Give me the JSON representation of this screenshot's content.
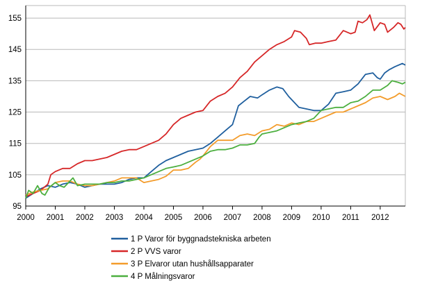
{
  "chart_data": {
    "type": "line",
    "title": "",
    "xlabel": "",
    "ylabel": "",
    "xlim": [
      2000,
      2012.85
    ],
    "ylim": [
      95,
      159
    ],
    "y_ticks": [
      95,
      105,
      115,
      125,
      135,
      145,
      155
    ],
    "x_ticks": [
      2000,
      2001,
      2002,
      2003,
      2004,
      2005,
      2006,
      2007,
      2008,
      2009,
      2010,
      2011,
      2012
    ],
    "x_tick_labels": [
      "2000",
      "2001",
      "2002",
      "2003",
      "2004",
      "2005",
      "2006",
      "2007",
      "2008",
      "2009",
      "2010",
      "2011",
      "2012"
    ],
    "grid": "horizontal",
    "legend_position": "bottom",
    "series": [
      {
        "name": "1 P Varor för byggnadstekniska arbeten",
        "color": "#1f5f9e",
        "points": [
          [
            2000.0,
            97.5
          ],
          [
            2000.25,
            99
          ],
          [
            2000.5,
            100.5
          ],
          [
            2000.75,
            101.5
          ],
          [
            2001.0,
            101
          ],
          [
            2001.25,
            102
          ],
          [
            2001.5,
            102.5
          ],
          [
            2001.75,
            102
          ],
          [
            2002.0,
            101
          ],
          [
            2002.25,
            101.5
          ],
          [
            2002.5,
            102
          ],
          [
            2002.75,
            102
          ],
          [
            2003.0,
            102
          ],
          [
            2003.25,
            102.5
          ],
          [
            2003.5,
            103.5
          ],
          [
            2003.75,
            104
          ],
          [
            2004.0,
            104
          ],
          [
            2004.25,
            106
          ],
          [
            2004.5,
            108
          ],
          [
            2004.75,
            109.5
          ],
          [
            2005.0,
            110.5
          ],
          [
            2005.25,
            111.5
          ],
          [
            2005.5,
            112.5
          ],
          [
            2005.75,
            113
          ],
          [
            2006.0,
            113.5
          ],
          [
            2006.25,
            115
          ],
          [
            2006.5,
            117
          ],
          [
            2006.75,
            119
          ],
          [
            2007.0,
            121
          ],
          [
            2007.1,
            124
          ],
          [
            2007.2,
            127
          ],
          [
            2007.4,
            128.5
          ],
          [
            2007.6,
            130
          ],
          [
            2007.85,
            129.5
          ],
          [
            2008.0,
            130.5
          ],
          [
            2008.25,
            132
          ],
          [
            2008.5,
            133
          ],
          [
            2008.7,
            132.5
          ],
          [
            2008.9,
            130
          ],
          [
            2009.0,
            129
          ],
          [
            2009.25,
            126.5
          ],
          [
            2009.5,
            126
          ],
          [
            2009.75,
            125.5
          ],
          [
            2010.0,
            125.5
          ],
          [
            2010.25,
            127.5
          ],
          [
            2010.5,
            131
          ],
          [
            2010.75,
            131.5
          ],
          [
            2011.0,
            132
          ],
          [
            2011.25,
            134
          ],
          [
            2011.5,
            137
          ],
          [
            2011.75,
            137.5
          ],
          [
            2011.9,
            136
          ],
          [
            2012.0,
            135.5
          ],
          [
            2012.15,
            137.5
          ],
          [
            2012.3,
            138.5
          ],
          [
            2012.5,
            139.5
          ],
          [
            2012.75,
            140.5
          ],
          [
            2012.85,
            140
          ]
        ]
      },
      {
        "name": "2 P VVS varor",
        "color": "#d62728",
        "points": [
          [
            2000.0,
            98
          ],
          [
            2000.25,
            99
          ],
          [
            2000.5,
            100
          ],
          [
            2000.75,
            102
          ],
          [
            2000.85,
            105
          ],
          [
            2001.0,
            106
          ],
          [
            2001.25,
            107
          ],
          [
            2001.5,
            107
          ],
          [
            2001.75,
            108.5
          ],
          [
            2002.0,
            109.5
          ],
          [
            2002.25,
            109.5
          ],
          [
            2002.5,
            110
          ],
          [
            2002.75,
            110.5
          ],
          [
            2003.0,
            111.5
          ],
          [
            2003.25,
            112.5
          ],
          [
            2003.5,
            113
          ],
          [
            2003.75,
            113
          ],
          [
            2004.0,
            114
          ],
          [
            2004.25,
            115
          ],
          [
            2004.5,
            116
          ],
          [
            2004.75,
            118
          ],
          [
            2005.0,
            121
          ],
          [
            2005.25,
            123
          ],
          [
            2005.5,
            124
          ],
          [
            2005.75,
            125
          ],
          [
            2006.0,
            125.5
          ],
          [
            2006.25,
            128.5
          ],
          [
            2006.5,
            130
          ],
          [
            2006.75,
            131
          ],
          [
            2007.0,
            133
          ],
          [
            2007.25,
            136
          ],
          [
            2007.5,
            138
          ],
          [
            2007.75,
            141
          ],
          [
            2008.0,
            143
          ],
          [
            2008.25,
            145
          ],
          [
            2008.5,
            146.5
          ],
          [
            2008.75,
            147.5
          ],
          [
            2009.0,
            149
          ],
          [
            2009.1,
            151
          ],
          [
            2009.3,
            150.5
          ],
          [
            2009.5,
            148.5
          ],
          [
            2009.6,
            146.5
          ],
          [
            2009.8,
            147
          ],
          [
            2010.0,
            147
          ],
          [
            2010.25,
            147.5
          ],
          [
            2010.5,
            148
          ],
          [
            2010.75,
            151
          ],
          [
            2011.0,
            150
          ],
          [
            2011.15,
            150.5
          ],
          [
            2011.25,
            154
          ],
          [
            2011.4,
            153.5
          ],
          [
            2011.55,
            154.5
          ],
          [
            2011.65,
            156
          ],
          [
            2011.8,
            151
          ],
          [
            2012.0,
            153.5
          ],
          [
            2012.15,
            153
          ],
          [
            2012.25,
            150.5
          ],
          [
            2012.45,
            152
          ],
          [
            2012.6,
            153.5
          ],
          [
            2012.7,
            153
          ],
          [
            2012.8,
            151.5
          ],
          [
            2012.85,
            152
          ]
        ]
      },
      {
        "name": "3 P Elvaror utan hushållsapparater",
        "color": "#f39c2b",
        "points": [
          [
            2000.0,
            98.5
          ],
          [
            2000.25,
            99.5
          ],
          [
            2000.5,
            100
          ],
          [
            2000.75,
            100.5
          ],
          [
            2001.0,
            102.5
          ],
          [
            2001.25,
            103
          ],
          [
            2001.5,
            103
          ],
          [
            2001.75,
            102
          ],
          [
            2002.0,
            101.5
          ],
          [
            2002.25,
            101.5
          ],
          [
            2002.5,
            102
          ],
          [
            2002.75,
            102.5
          ],
          [
            2003.0,
            103
          ],
          [
            2003.25,
            104
          ],
          [
            2003.5,
            104
          ],
          [
            2003.75,
            104
          ],
          [
            2004.0,
            102.5
          ],
          [
            2004.25,
            103
          ],
          [
            2004.5,
            103.5
          ],
          [
            2004.75,
            104.5
          ],
          [
            2005.0,
            106.5
          ],
          [
            2005.25,
            106.5
          ],
          [
            2005.5,
            107
          ],
          [
            2005.75,
            109
          ],
          [
            2005.9,
            110
          ],
          [
            2006.0,
            111
          ],
          [
            2006.25,
            114
          ],
          [
            2006.5,
            116
          ],
          [
            2006.75,
            116
          ],
          [
            2007.0,
            116
          ],
          [
            2007.25,
            117.5
          ],
          [
            2007.5,
            118
          ],
          [
            2007.75,
            117.5
          ],
          [
            2008.0,
            119
          ],
          [
            2008.25,
            119.5
          ],
          [
            2008.5,
            121
          ],
          [
            2008.75,
            120.5
          ],
          [
            2009.0,
            121.5
          ],
          [
            2009.25,
            121
          ],
          [
            2009.5,
            122
          ],
          [
            2009.75,
            122
          ],
          [
            2010.0,
            123
          ],
          [
            2010.25,
            124
          ],
          [
            2010.5,
            125
          ],
          [
            2010.75,
            125
          ],
          [
            2011.0,
            126
          ],
          [
            2011.25,
            127
          ],
          [
            2011.5,
            128
          ],
          [
            2011.75,
            129.5
          ],
          [
            2012.0,
            130
          ],
          [
            2012.25,
            129
          ],
          [
            2012.5,
            130
          ],
          [
            2012.65,
            131
          ],
          [
            2012.85,
            130
          ]
        ]
      },
      {
        "name": "4 P Målningsvaror",
        "color": "#4caf3f",
        "points": [
          [
            2000.0,
            97.5
          ],
          [
            2000.1,
            100
          ],
          [
            2000.25,
            99
          ],
          [
            2000.4,
            101.5
          ],
          [
            2000.55,
            99
          ],
          [
            2000.65,
            98.5
          ],
          [
            2000.8,
            101
          ],
          [
            2001.0,
            102.5
          ],
          [
            2001.15,
            101.5
          ],
          [
            2001.3,
            101
          ],
          [
            2001.45,
            102.5
          ],
          [
            2001.6,
            104
          ],
          [
            2001.75,
            101.5
          ],
          [
            2002.0,
            102
          ],
          [
            2002.25,
            102
          ],
          [
            2002.5,
            102
          ],
          [
            2002.75,
            102.5
          ],
          [
            2003.0,
            102.5
          ],
          [
            2003.25,
            103
          ],
          [
            2003.5,
            103
          ],
          [
            2003.75,
            103.5
          ],
          [
            2004.0,
            104
          ],
          [
            2004.25,
            105
          ],
          [
            2004.5,
            106
          ],
          [
            2004.75,
            107
          ],
          [
            2005.0,
            107.5
          ],
          [
            2005.25,
            108
          ],
          [
            2005.5,
            109
          ],
          [
            2005.75,
            110
          ],
          [
            2006.0,
            111
          ],
          [
            2006.25,
            112.5
          ],
          [
            2006.5,
            113
          ],
          [
            2006.75,
            113
          ],
          [
            2007.0,
            113.5
          ],
          [
            2007.25,
            114.5
          ],
          [
            2007.5,
            114.5
          ],
          [
            2007.75,
            115
          ],
          [
            2007.9,
            117
          ],
          [
            2008.0,
            118
          ],
          [
            2008.25,
            118.5
          ],
          [
            2008.5,
            119
          ],
          [
            2008.75,
            120
          ],
          [
            2009.0,
            121
          ],
          [
            2009.25,
            121.5
          ],
          [
            2009.5,
            122
          ],
          [
            2009.75,
            123
          ],
          [
            2010.0,
            125.5
          ],
          [
            2010.25,
            126
          ],
          [
            2010.5,
            126.5
          ],
          [
            2010.75,
            126.5
          ],
          [
            2011.0,
            128
          ],
          [
            2011.25,
            128.5
          ],
          [
            2011.5,
            130
          ],
          [
            2011.75,
            132
          ],
          [
            2012.0,
            132
          ],
          [
            2012.25,
            133.5
          ],
          [
            2012.4,
            135
          ],
          [
            2012.6,
            134.5
          ],
          [
            2012.75,
            134
          ],
          [
            2012.85,
            134.5
          ]
        ]
      }
    ]
  }
}
